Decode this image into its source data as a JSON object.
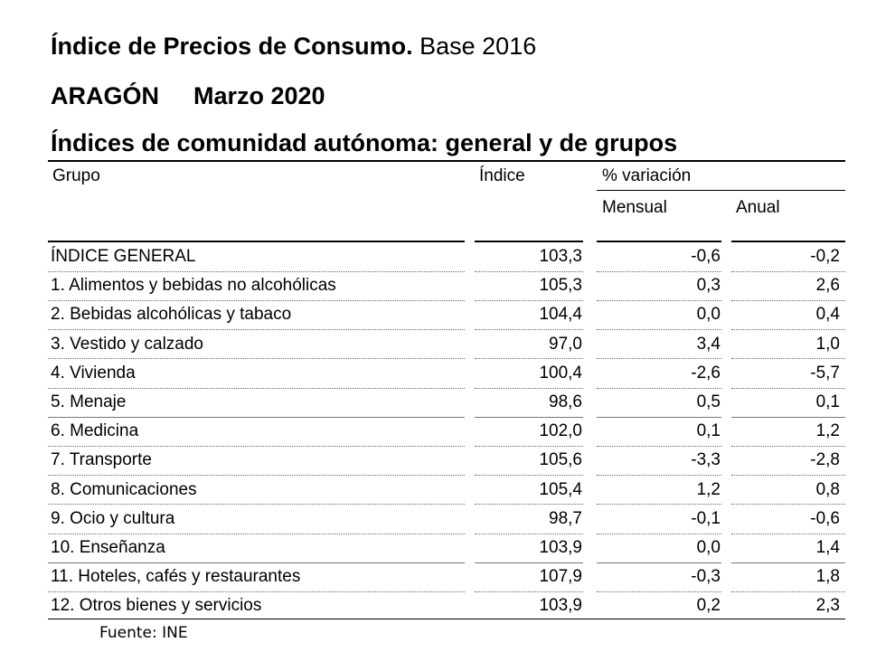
{
  "title": {
    "main": "Índice de Precios de Consumo.",
    "base": "Base 2016",
    "region": "ARAGÓN",
    "period": "Marzo 2020",
    "subtitle": "Índices de comunidad autónoma: general y de grupos"
  },
  "table": {
    "headers": {
      "grupo": "Grupo",
      "indice": "Índice",
      "variacion": "% variación",
      "mensual": "Mensual",
      "anual": "Anual"
    },
    "rows": [
      {
        "label": "ÍNDICE GENERAL",
        "indice": "103,3",
        "mensual": "-0,6",
        "anual": "-0,2"
      },
      {
        "label": "1. Alimentos y bebidas no alcohólicas",
        "indice": "105,3",
        "mensual": "0,3",
        "anual": "2,6"
      },
      {
        "label": "2. Bebidas alcohólicas y tabaco",
        "indice": "104,4",
        "mensual": "0,0",
        "anual": "0,4"
      },
      {
        "label": "3. Vestido y calzado",
        "indice": "97,0",
        "mensual": "3,4",
        "anual": "1,0"
      },
      {
        "label": "4. Vivienda",
        "indice": "100,4",
        "mensual": "-2,6",
        "anual": "-5,7"
      },
      {
        "label": "5. Menaje",
        "indice": "98,6",
        "mensual": "0,5",
        "anual": "0,1"
      },
      {
        "label": "6. Medicina",
        "indice": "102,0",
        "mensual": "0,1",
        "anual": "1,2"
      },
      {
        "label": "7. Transporte",
        "indice": "105,6",
        "mensual": "-3,3",
        "anual": "-2,8"
      },
      {
        "label": "8. Comunicaciones",
        "indice": "105,4",
        "mensual": "1,2",
        "anual": "0,8"
      },
      {
        "label": "9. Ocio y cultura",
        "indice": "98,7",
        "mensual": "-0,1",
        "anual": "-0,6"
      },
      {
        "label": "10. Enseñanza",
        "indice": "103,9",
        "mensual": "0,0",
        "anual": "1,4"
      },
      {
        "label": "11. Hoteles, cafés y restaurantes",
        "indice": "107,9",
        "mensual": "-0,3",
        "anual": "1,8"
      },
      {
        "label": "12. Otros bienes y servicios",
        "indice": "103,9",
        "mensual": "0,2",
        "anual": "2,3"
      }
    ]
  },
  "source": "Fuente: INE"
}
